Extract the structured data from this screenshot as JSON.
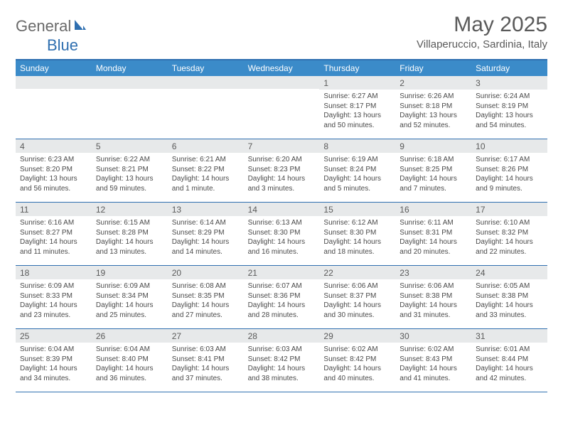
{
  "brand": {
    "general": "General",
    "blue": "Blue"
  },
  "title": "May 2025",
  "subtitle": "Villaperuccio, Sardinia, Italy",
  "colors": {
    "header_bar": "#3b8bc9",
    "border": "#2f6fb0",
    "daynum_bg": "#e7e9ea",
    "text": "#5a5a5a",
    "body_text": "#4a4a4a",
    "logo_gray": "#6a6a6a",
    "logo_blue": "#2f6fb0",
    "background": "#ffffff"
  },
  "typography": {
    "title_fontsize": 30,
    "subtitle_fontsize": 15,
    "dayhead_fontsize": 12,
    "daynum_fontsize": 12,
    "body_fontsize": 10
  },
  "day_names": [
    "Sunday",
    "Monday",
    "Tuesday",
    "Wednesday",
    "Thursday",
    "Friday",
    "Saturday"
  ],
  "labels": {
    "sunrise": "Sunrise:",
    "sunset": "Sunset:",
    "daylight": "Daylight:"
  },
  "weeks": [
    [
      {
        "n": "",
        "sunrise": "",
        "sunset": "",
        "daylight": ""
      },
      {
        "n": "",
        "sunrise": "",
        "sunset": "",
        "daylight": ""
      },
      {
        "n": "",
        "sunrise": "",
        "sunset": "",
        "daylight": ""
      },
      {
        "n": "",
        "sunrise": "",
        "sunset": "",
        "daylight": ""
      },
      {
        "n": "1",
        "sunrise": "6:27 AM",
        "sunset": "8:17 PM",
        "daylight": "13 hours and 50 minutes."
      },
      {
        "n": "2",
        "sunrise": "6:26 AM",
        "sunset": "8:18 PM",
        "daylight": "13 hours and 52 minutes."
      },
      {
        "n": "3",
        "sunrise": "6:24 AM",
        "sunset": "8:19 PM",
        "daylight": "13 hours and 54 minutes."
      }
    ],
    [
      {
        "n": "4",
        "sunrise": "6:23 AM",
        "sunset": "8:20 PM",
        "daylight": "13 hours and 56 minutes."
      },
      {
        "n": "5",
        "sunrise": "6:22 AM",
        "sunset": "8:21 PM",
        "daylight": "13 hours and 59 minutes."
      },
      {
        "n": "6",
        "sunrise": "6:21 AM",
        "sunset": "8:22 PM",
        "daylight": "14 hours and 1 minute."
      },
      {
        "n": "7",
        "sunrise": "6:20 AM",
        "sunset": "8:23 PM",
        "daylight": "14 hours and 3 minutes."
      },
      {
        "n": "8",
        "sunrise": "6:19 AM",
        "sunset": "8:24 PM",
        "daylight": "14 hours and 5 minutes."
      },
      {
        "n": "9",
        "sunrise": "6:18 AM",
        "sunset": "8:25 PM",
        "daylight": "14 hours and 7 minutes."
      },
      {
        "n": "10",
        "sunrise": "6:17 AM",
        "sunset": "8:26 PM",
        "daylight": "14 hours and 9 minutes."
      }
    ],
    [
      {
        "n": "11",
        "sunrise": "6:16 AM",
        "sunset": "8:27 PM",
        "daylight": "14 hours and 11 minutes."
      },
      {
        "n": "12",
        "sunrise": "6:15 AM",
        "sunset": "8:28 PM",
        "daylight": "14 hours and 13 minutes."
      },
      {
        "n": "13",
        "sunrise": "6:14 AM",
        "sunset": "8:29 PM",
        "daylight": "14 hours and 14 minutes."
      },
      {
        "n": "14",
        "sunrise": "6:13 AM",
        "sunset": "8:30 PM",
        "daylight": "14 hours and 16 minutes."
      },
      {
        "n": "15",
        "sunrise": "6:12 AM",
        "sunset": "8:30 PM",
        "daylight": "14 hours and 18 minutes."
      },
      {
        "n": "16",
        "sunrise": "6:11 AM",
        "sunset": "8:31 PM",
        "daylight": "14 hours and 20 minutes."
      },
      {
        "n": "17",
        "sunrise": "6:10 AM",
        "sunset": "8:32 PM",
        "daylight": "14 hours and 22 minutes."
      }
    ],
    [
      {
        "n": "18",
        "sunrise": "6:09 AM",
        "sunset": "8:33 PM",
        "daylight": "14 hours and 23 minutes."
      },
      {
        "n": "19",
        "sunrise": "6:09 AM",
        "sunset": "8:34 PM",
        "daylight": "14 hours and 25 minutes."
      },
      {
        "n": "20",
        "sunrise": "6:08 AM",
        "sunset": "8:35 PM",
        "daylight": "14 hours and 27 minutes."
      },
      {
        "n": "21",
        "sunrise": "6:07 AM",
        "sunset": "8:36 PM",
        "daylight": "14 hours and 28 minutes."
      },
      {
        "n": "22",
        "sunrise": "6:06 AM",
        "sunset": "8:37 PM",
        "daylight": "14 hours and 30 minutes."
      },
      {
        "n": "23",
        "sunrise": "6:06 AM",
        "sunset": "8:38 PM",
        "daylight": "14 hours and 31 minutes."
      },
      {
        "n": "24",
        "sunrise": "6:05 AM",
        "sunset": "8:38 PM",
        "daylight": "14 hours and 33 minutes."
      }
    ],
    [
      {
        "n": "25",
        "sunrise": "6:04 AM",
        "sunset": "8:39 PM",
        "daylight": "14 hours and 34 minutes."
      },
      {
        "n": "26",
        "sunrise": "6:04 AM",
        "sunset": "8:40 PM",
        "daylight": "14 hours and 36 minutes."
      },
      {
        "n": "27",
        "sunrise": "6:03 AM",
        "sunset": "8:41 PM",
        "daylight": "14 hours and 37 minutes."
      },
      {
        "n": "28",
        "sunrise": "6:03 AM",
        "sunset": "8:42 PM",
        "daylight": "14 hours and 38 minutes."
      },
      {
        "n": "29",
        "sunrise": "6:02 AM",
        "sunset": "8:42 PM",
        "daylight": "14 hours and 40 minutes."
      },
      {
        "n": "30",
        "sunrise": "6:02 AM",
        "sunset": "8:43 PM",
        "daylight": "14 hours and 41 minutes."
      },
      {
        "n": "31",
        "sunrise": "6:01 AM",
        "sunset": "8:44 PM",
        "daylight": "14 hours and 42 minutes."
      }
    ]
  ]
}
